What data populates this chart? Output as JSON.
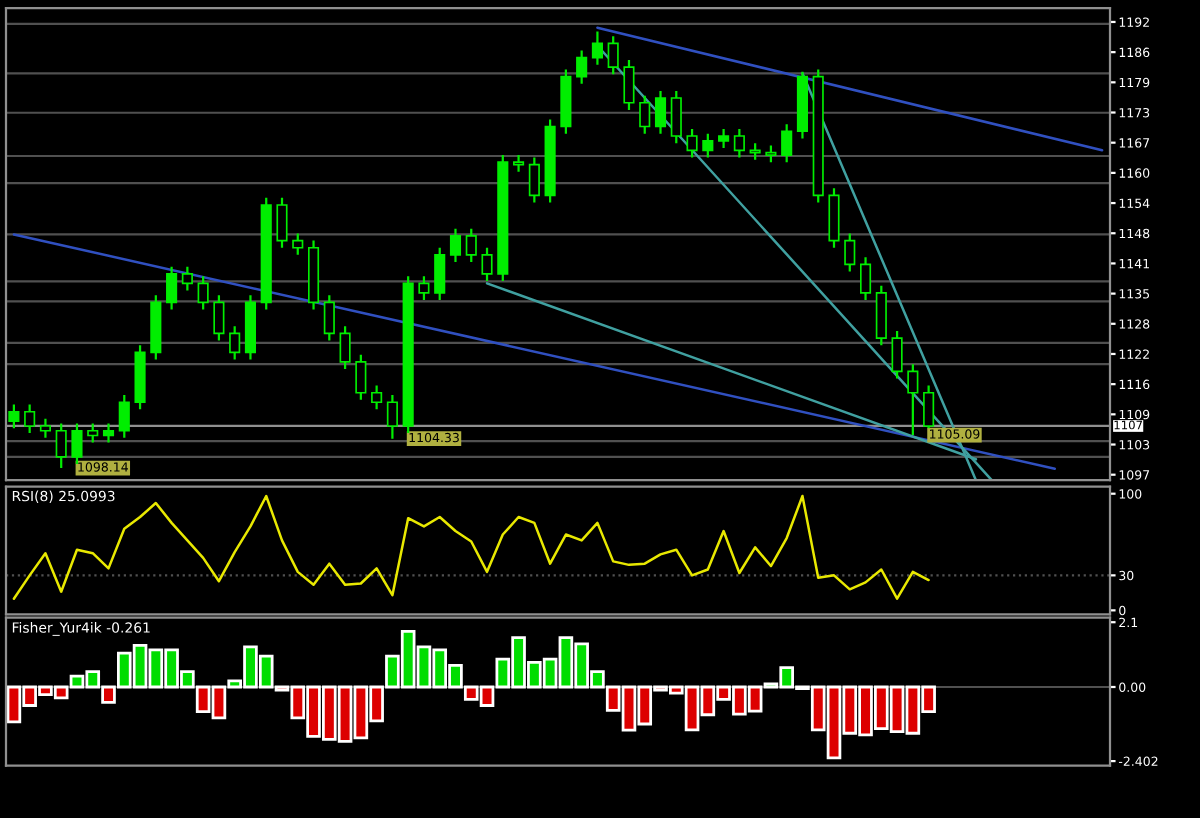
{
  "chart_data": [
    {
      "type": "candlestick",
      "categories": [
        null,
        null,
        null,
        null,
        null,
        null,
        null,
        null,
        null,
        null,
        null,
        null,
        null,
        null,
        null,
        null,
        null,
        null,
        null,
        null,
        null,
        null,
        null,
        null,
        null,
        null,
        null,
        null,
        null,
        null,
        null,
        null,
        null,
        null,
        null,
        null,
        null,
        null,
        null,
        null,
        null,
        null,
        null,
        null,
        null,
        null,
        null,
        null,
        null,
        null,
        null,
        null,
        null,
        null,
        null,
        null,
        null,
        null,
        null,
        null,
        null,
        null,
        null,
        null,
        null,
        null,
        null,
        null,
        null,
        null
      ],
      "series": [
        {
          "type": "candlestick",
          "color": "#00ee00",
          "ohlc": [
            [
              1108,
              1111.5,
              1106.5,
              1110
            ],
            [
              1110,
              1111.5,
              1105.5,
              1107
            ],
            [
              1107,
              1108.5,
              1104.5,
              1106
            ],
            [
              1106,
              1107.5,
              1098.14,
              1100.5
            ],
            [
              1100.5,
              1107.5,
              1099,
              1106
            ],
            [
              1106,
              1107.5,
              1103.5,
              1105
            ],
            [
              1105,
              1107.5,
              1103.5,
              1106
            ],
            [
              1106,
              1113.5,
              1104.5,
              1112
            ],
            [
              1112,
              1124,
              1110.5,
              1122.5
            ],
            [
              1122.5,
              1134.5,
              1121,
              1133
            ],
            [
              1133,
              1140.5,
              1131.5,
              1139
            ],
            [
              1139,
              1140.5,
              1135.5,
              1137
            ],
            [
              1137,
              1138.5,
              1131.5,
              1133
            ],
            [
              1133,
              1134.5,
              1125,
              1126.5
            ],
            [
              1126.5,
              1128,
              1121,
              1122.5
            ],
            [
              1122.5,
              1134.5,
              1121,
              1133
            ],
            [
              1133,
              1155,
              1131.5,
              1153.5
            ],
            [
              1153.5,
              1155,
              1144.5,
              1146
            ],
            [
              1146,
              1147.5,
              1143,
              1144.5
            ],
            [
              1144.5,
              1146,
              1131.5,
              1133
            ],
            [
              1133,
              1134.5,
              1125,
              1126.5
            ],
            [
              1126.5,
              1128,
              1119,
              1120.5
            ],
            [
              1120.5,
              1122,
              1112.5,
              1114
            ],
            [
              1114,
              1115.5,
              1110.5,
              1112
            ],
            [
              1112,
              1113.5,
              1104.33,
              1107
            ],
            [
              1107,
              1138.5,
              1105.5,
              1137
            ],
            [
              1137,
              1138.5,
              1133.5,
              1135
            ],
            [
              1135,
              1144.5,
              1133.5,
              1143
            ],
            [
              1143,
              1148.5,
              1141.5,
              1147
            ],
            [
              1147,
              1148.5,
              1141.5,
              1143
            ],
            [
              1143,
              1144.5,
              1137.5,
              1139
            ],
            [
              1139,
              1164,
              1137.5,
              1162.5
            ],
            [
              1162.5,
              1164,
              1160.5,
              1162
            ],
            [
              1162,
              1163.5,
              1154,
              1155.5
            ],
            [
              1155.5,
              1171.5,
              1154,
              1170
            ],
            [
              1170,
              1182,
              1168.5,
              1180.5
            ],
            [
              1180.5,
              1186,
              1179,
              1184.5
            ],
            [
              1184.5,
              1190,
              1183,
              1187.5
            ],
            [
              1187.5,
              1189,
              1181,
              1182.5
            ],
            [
              1182.5,
              1184,
              1173.5,
              1175
            ],
            [
              1175,
              1176.5,
              1168.5,
              1170
            ],
            [
              1170,
              1177.5,
              1168.5,
              1176
            ],
            [
              1176,
              1177.5,
              1166.5,
              1168
            ],
            [
              1168,
              1169.5,
              1163.5,
              1165
            ],
            [
              1165,
              1168.5,
              1163.5,
              1167
            ],
            [
              1167,
              1169.5,
              1165.5,
              1168
            ],
            [
              1168,
              1169.5,
              1163.5,
              1165
            ],
            [
              1165,
              1166.5,
              1163,
              1164.5
            ],
            [
              1164.5,
              1166,
              1162.5,
              1164
            ],
            [
              1164,
              1170.5,
              1162.5,
              1169
            ],
            [
              1169,
              1181.5,
              1167.5,
              1180.5
            ],
            [
              1180.5,
              1182,
              1154,
              1155.5
            ],
            [
              1155.5,
              1157,
              1144.5,
              1146
            ],
            [
              1146,
              1147.5,
              1139.5,
              1141
            ],
            [
              1141,
              1142.5,
              1133.5,
              1135
            ],
            [
              1135,
              1136.5,
              1124,
              1125.5
            ],
            [
              1125.5,
              1127,
              1117,
              1118.5
            ],
            [
              1118.5,
              1120,
              1105.09,
              1114
            ],
            [
              1114,
              1115.5,
              1106.5,
              1107
            ],
            null,
            null,
            null,
            null,
            null,
            null,
            null,
            null,
            null,
            null,
            null
          ],
          "value_labels": [
            null,
            null,
            null,
            "1098.14",
            null,
            null,
            null,
            null,
            null,
            null,
            null,
            null,
            null,
            null,
            null,
            null,
            null,
            null,
            null,
            null,
            null,
            null,
            null,
            null,
            "1104.33",
            null,
            null,
            null,
            null,
            null,
            null,
            null,
            null,
            null,
            null,
            null,
            null,
            null,
            null,
            null,
            null,
            null,
            null,
            null,
            null,
            null,
            null,
            null,
            null,
            null,
            null,
            null,
            null,
            null,
            null,
            null,
            null,
            "1105.09",
            null,
            null,
            null,
            null,
            null,
            null,
            null,
            null,
            null,
            null,
            null,
            null
          ]
        },
        {
          "type": "line",
          "color": "#3050c0",
          "values": [
            1147.3,
            null,
            null,
            null,
            null,
            null,
            null,
            null,
            null,
            null,
            null,
            null,
            null,
            null,
            null,
            null,
            null,
            null,
            null,
            null,
            null,
            null,
            null,
            null,
            null,
            null,
            null,
            null,
            null,
            null,
            null,
            null,
            null,
            null,
            null,
            null,
            null,
            null,
            null,
            null,
            null,
            null,
            null,
            null,
            null,
            null,
            null,
            null,
            null,
            null,
            null,
            null,
            null,
            null,
            null,
            null,
            null,
            null,
            null,
            null,
            null,
            null,
            null,
            null,
            null,
            null,
            1098,
            null,
            null,
            null
          ]
        },
        {
          "type": "line",
          "color": "#40a0a0",
          "values": [
            null,
            null,
            null,
            null,
            null,
            null,
            null,
            null,
            null,
            null,
            null,
            null,
            null,
            null,
            null,
            null,
            null,
            null,
            null,
            null,
            null,
            null,
            null,
            null,
            null,
            null,
            null,
            null,
            null,
            null,
            1137,
            null,
            null,
            null,
            null,
            null,
            null,
            null,
            null,
            null,
            null,
            null,
            null,
            null,
            null,
            null,
            null,
            null,
            null,
            null,
            null,
            null,
            null,
            null,
            null,
            null,
            null,
            null,
            null,
            null,
            null,
            1100,
            null,
            null,
            null,
            null,
            null,
            null,
            null,
            null
          ]
        },
        {
          "type": "line",
          "color": "#3050c0",
          "values": [
            null,
            null,
            null,
            null,
            null,
            null,
            null,
            null,
            null,
            null,
            null,
            null,
            null,
            null,
            null,
            null,
            null,
            null,
            null,
            null,
            null,
            null,
            null,
            null,
            null,
            null,
            null,
            null,
            null,
            null,
            null,
            null,
            null,
            null,
            null,
            null,
            null,
            1190.8,
            null,
            null,
            null,
            null,
            null,
            null,
            null,
            null,
            null,
            null,
            null,
            null,
            null,
            null,
            null,
            null,
            null,
            null,
            null,
            null,
            null,
            null,
            null,
            null,
            null,
            null,
            null,
            null,
            null,
            null,
            null,
            1165
          ]
        },
        {
          "type": "line",
          "color": "#40a0a0",
          "values": [
            null,
            null,
            null,
            null,
            null,
            null,
            null,
            null,
            null,
            null,
            null,
            null,
            null,
            null,
            null,
            null,
            null,
            null,
            null,
            null,
            null,
            null,
            null,
            null,
            null,
            null,
            null,
            null,
            null,
            null,
            null,
            null,
            null,
            null,
            null,
            null,
            null,
            null,
            null,
            null,
            null,
            null,
            null,
            null,
            null,
            null,
            null,
            null,
            null,
            null,
            1181.2,
            null,
            null,
            null,
            null,
            null,
            null,
            null,
            null,
            null,
            null,
            1095.6,
            null,
            null,
            null,
            null,
            null,
            null,
            null,
            null
          ]
        },
        {
          "type": "line",
          "color": "#40a0a0",
          "values": [
            null,
            null,
            null,
            null,
            null,
            null,
            null,
            null,
            null,
            null,
            null,
            null,
            null,
            null,
            null,
            null,
            null,
            null,
            null,
            null,
            null,
            null,
            null,
            null,
            null,
            null,
            null,
            null,
            null,
            null,
            null,
            null,
            null,
            null,
            null,
            null,
            null,
            1187,
            null,
            null,
            null,
            null,
            null,
            null,
            null,
            null,
            null,
            null,
            null,
            null,
            null,
            null,
            null,
            null,
            null,
            null,
            null,
            null,
            null,
            null,
            null,
            null,
            1095.6,
            null,
            null,
            null,
            null,
            null,
            null,
            null
          ]
        }
      ],
      "ylim": [
        1095.6,
        1194.9
      ],
      "yticks": [
        {
          "value": 1192,
          "label": "1192"
        },
        {
          "value": 1185.65,
          "label": "1186"
        },
        {
          "value": 1179.3,
          "label": "1179"
        },
        {
          "value": 1172.95,
          "label": "1173"
        },
        {
          "value": 1166.6,
          "label": "1167"
        },
        {
          "value": 1160.25,
          "label": "1160"
        },
        {
          "value": 1153.9,
          "label": "1154"
        },
        {
          "value": 1147.55,
          "label": "1148"
        },
        {
          "value": 1141.2,
          "label": "1141"
        },
        {
          "value": 1134.85,
          "label": "1135"
        },
        {
          "value": 1128.5,
          "label": "1128"
        },
        {
          "value": 1122.15,
          "label": "1122"
        },
        {
          "value": 1115.8,
          "label": "1116"
        },
        {
          "value": 1109.45,
          "label": "1109"
        },
        {
          "value": 1103.1,
          "label": "1103"
        },
        {
          "value": 1096.75,
          "label": "1097"
        }
      ],
      "ref_lines": [
        {
          "axis": "y",
          "value": 1191.6,
          "color": "#505050"
        },
        {
          "axis": "y",
          "value": 1181.2,
          "color": "#505050"
        },
        {
          "axis": "y",
          "value": 1172.9,
          "color": "#505050"
        },
        {
          "axis": "y",
          "value": 1163.8,
          "color": "#505050"
        },
        {
          "axis": "y",
          "value": 1158.1,
          "color": "#505050"
        },
        {
          "axis": "y",
          "value": 1147.3,
          "color": "#505050"
        },
        {
          "axis": "y",
          "value": 1137.4,
          "color": "#505050"
        },
        {
          "axis": "y",
          "value": 1133.2,
          "color": "#505050"
        },
        {
          "axis": "y",
          "value": 1124.5,
          "color": "#505050"
        },
        {
          "axis": "y",
          "value": 1120,
          "color": "#505050"
        },
        {
          "axis": "y",
          "value": 1103.8,
          "color": "#505050"
        },
        {
          "axis": "y",
          "value": 1100.5,
          "color": "#505050"
        },
        {
          "axis": "y",
          "value": 1107,
          "label": "1107",
          "color": "#909090"
        }
      ],
      "tick_labels": "y"
    },
    {
      "type": "line",
      "title": "RSI(8) 25.0993",
      "categories": [
        null,
        null,
        null,
        null,
        null,
        null,
        null,
        null,
        null,
        null,
        null,
        null,
        null,
        null,
        null,
        null,
        null,
        null,
        null,
        null,
        null,
        null,
        null,
        null,
        null,
        null,
        null,
        null,
        null,
        null,
        null,
        null,
        null,
        null,
        null,
        null,
        null,
        null,
        null,
        null,
        null,
        null,
        null,
        null,
        null,
        null,
        null,
        null,
        null,
        null,
        null,
        null,
        null,
        null,
        null,
        null,
        null,
        null,
        null,
        null,
        null,
        null,
        null,
        null,
        null,
        null,
        null,
        null,
        null,
        null
      ],
      "series": [
        {
          "color": "#e8e800",
          "values": [
            10,
            30,
            49,
            16,
            52,
            49,
            36,
            70,
            80,
            92,
            75,
            60,
            45,
            25,
            50,
            72,
            98,
            60,
            33,
            22,
            40,
            22,
            23,
            36,
            13,
            79,
            72,
            80,
            68,
            59,
            33,
            65,
            80,
            75,
            40,
            65,
            60,
            75,
            42,
            39,
            40,
            48,
            52,
            30,
            35,
            68,
            32,
            54,
            38,
            62,
            98,
            28,
            30,
            18,
            24,
            35,
            10,
            33,
            26,
            null,
            null,
            null,
            null,
            null,
            null,
            null,
            null,
            null,
            null,
            null
          ]
        }
      ],
      "ylim": [
        -3.4,
        106
      ],
      "yticks": [
        100,
        30,
        0
      ],
      "ref_lines": [
        {
          "axis": "y",
          "value": 30,
          "color": "#505050",
          "line_style": "dotted"
        }
      ],
      "tick_labels": "y"
    },
    {
      "type": "bar",
      "title": "Fisher_Yur4ik -0.261",
      "categories": [
        null,
        null,
        null,
        null,
        null,
        null,
        null,
        null,
        null,
        null,
        null,
        null,
        null,
        null,
        null,
        null,
        null,
        null,
        null,
        null,
        null,
        null,
        null,
        null,
        null,
        null,
        null,
        null,
        null,
        null,
        null,
        null,
        null,
        null,
        null,
        null,
        null,
        null,
        null,
        null,
        null,
        null,
        null,
        null,
        null,
        null,
        null,
        null,
        null,
        null,
        null,
        null,
        null,
        null,
        null,
        null,
        null,
        null,
        null,
        null,
        null,
        null,
        null,
        null,
        null,
        null,
        null,
        null,
        null,
        null
      ],
      "values": [
        -1.13,
        -0.6,
        -0.25,
        -0.35,
        0.35,
        0.5,
        -0.5,
        1.1,
        1.35,
        1.2,
        1.2,
        0.5,
        -0.8,
        -1.0,
        0.2,
        1.3,
        1.0,
        -0.1,
        -1.0,
        -1.6,
        -1.7,
        -1.76,
        -1.65,
        -1.1,
        1.0,
        1.8,
        1.3,
        1.2,
        0.7,
        -0.4,
        -0.6,
        0.9,
        1.6,
        0.8,
        0.9,
        1.6,
        1.4,
        0.5,
        -0.76,
        -1.4,
        -1.2,
        -0.1,
        -0.2,
        -1.39,
        -0.9,
        -0.4,
        -0.88,
        -0.78,
        0.1,
        0.63,
        -0.05,
        -1.39,
        -2.3,
        -1.5,
        -1.55,
        -1.35,
        -1.45,
        -1.5,
        -0.8,
        null,
        null,
        null,
        null,
        null,
        null,
        null,
        null,
        null,
        null,
        null
      ],
      "colors": [
        "#dd0000",
        "#dd0000",
        "#dd0000",
        "#dd0000",
        "#00dd00",
        "#00dd00",
        "#dd0000",
        "#00dd00",
        "#00dd00",
        "#00dd00",
        "#00dd00",
        "#00dd00",
        "#dd0000",
        "#dd0000",
        "#00dd00",
        "#00dd00",
        "#00dd00",
        "#dd0000",
        "#dd0000",
        "#dd0000",
        "#dd0000",
        "#dd0000",
        "#dd0000",
        "#dd0000",
        "#00dd00",
        "#00dd00",
        "#00dd00",
        "#00dd00",
        "#00dd00",
        "#dd0000",
        "#dd0000",
        "#00dd00",
        "#00dd00",
        "#00dd00",
        "#00dd00",
        "#00dd00",
        "#00dd00",
        "#00dd00",
        "#dd0000",
        "#dd0000",
        "#dd0000",
        "#dd0000",
        "#dd0000",
        "#dd0000",
        "#dd0000",
        "#dd0000",
        "#dd0000",
        "#dd0000",
        "#00dd00",
        "#00dd00",
        "#dd0000",
        "#dd0000",
        "#dd0000",
        "#dd0000",
        "#dd0000",
        "#dd0000",
        "#dd0000",
        "#dd0000",
        "#dd0000",
        null,
        null,
        null,
        null,
        null,
        null,
        null,
        null,
        null,
        null,
        null
      ],
      "ylim": [
        -2.55,
        2.25
      ],
      "yticks": [
        2.1,
        {
          "value": 0,
          "label": "0.00"
        },
        -2.402
      ],
      "ref_lines": [
        {
          "axis": "y",
          "value": 0,
          "color": "#505050"
        }
      ],
      "tick_labels": "y"
    }
  ]
}
